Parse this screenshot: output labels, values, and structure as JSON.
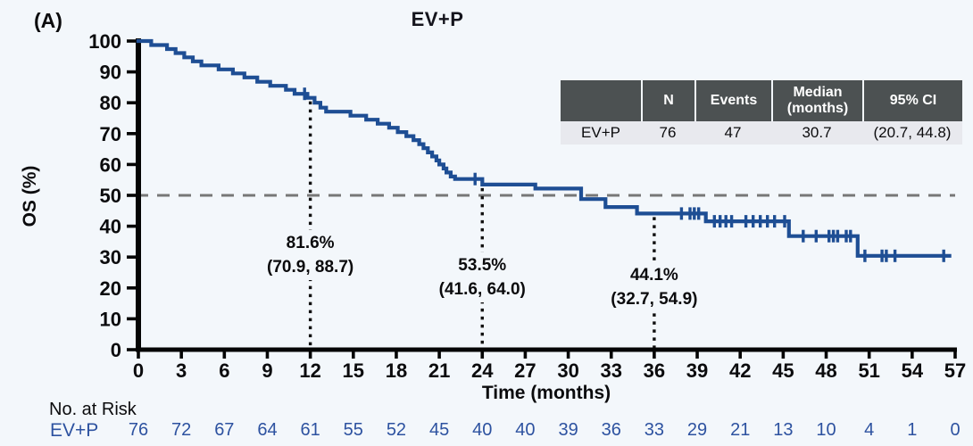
{
  "panel_label": "(A)",
  "title": "EV+P",
  "colors": {
    "background": "#f3f7fb",
    "curve": "#1e4e94",
    "risk_text": "#2d52a0",
    "reference_line": "#777777",
    "dotted_line": "#101010",
    "axis": "#050505",
    "table_header_bg": "#4c5152",
    "table_row_bg": "#e8e9ee"
  },
  "chart_data": {
    "type": "line",
    "subtype": "kaplan-meier-step",
    "title": "EV+P",
    "xlabel": "Time (months)",
    "ylabel": "OS (%)",
    "xlim": [
      0,
      57
    ],
    "ylim": [
      0,
      100
    ],
    "x_ticks": [
      0,
      3,
      6,
      9,
      12,
      15,
      18,
      21,
      24,
      27,
      30,
      33,
      36,
      39,
      42,
      45,
      48,
      51,
      54,
      57
    ],
    "y_ticks": [
      0,
      10,
      20,
      30,
      40,
      50,
      60,
      70,
      80,
      90,
      100
    ],
    "grid": false,
    "reference_line_y": 50,
    "series": [
      {
        "name": "EV+P",
        "n": 76,
        "events": 47,
        "median_months": 30.7,
        "ci_95": "(20.7, 44.8)",
        "step_points": [
          [
            0,
            100
          ],
          [
            0.9,
            98.7
          ],
          [
            2.0,
            97.4
          ],
          [
            2.6,
            96.1
          ],
          [
            3.2,
            94.7
          ],
          [
            3.8,
            93.4
          ],
          [
            4.4,
            92.1
          ],
          [
            5.6,
            90.8
          ],
          [
            6.6,
            89.5
          ],
          [
            7.4,
            88.2
          ],
          [
            8.3,
            86.8
          ],
          [
            9.2,
            85.5
          ],
          [
            10.3,
            84.2
          ],
          [
            10.9,
            82.9
          ],
          [
            11.8,
            81.6
          ],
          [
            12.3,
            80.0
          ],
          [
            12.7,
            78.4
          ],
          [
            13.1,
            77.1
          ],
          [
            14.8,
            75.8
          ],
          [
            15.9,
            74.5
          ],
          [
            16.7,
            73.2
          ],
          [
            17.5,
            71.9
          ],
          [
            18.1,
            70.5
          ],
          [
            18.7,
            69.2
          ],
          [
            19.2,
            67.9
          ],
          [
            19.6,
            66.6
          ],
          [
            19.9,
            65.3
          ],
          [
            20.2,
            63.9
          ],
          [
            20.5,
            62.6
          ],
          [
            20.8,
            61.3
          ],
          [
            21.0,
            60.0
          ],
          [
            21.3,
            58.7
          ],
          [
            21.5,
            57.4
          ],
          [
            21.8,
            56.1
          ],
          [
            22.1,
            55.3
          ],
          [
            24.0,
            53.5
          ],
          [
            27.7,
            52.2
          ],
          [
            30.9,
            48.8
          ],
          [
            32.6,
            46.2
          ],
          [
            34.8,
            44.1
          ],
          [
            39.6,
            41.6
          ],
          [
            45.4,
            36.8
          ],
          [
            50.2,
            30.4
          ]
        ],
        "end_time": 56.6,
        "censor_marks": [
          [
            11.6,
            82.9
          ],
          [
            23.5,
            55.3
          ],
          [
            37.9,
            44.1
          ],
          [
            38.5,
            44.1
          ],
          [
            38.8,
            44.1
          ],
          [
            39.1,
            44.1
          ],
          [
            40.2,
            41.6
          ],
          [
            40.6,
            41.6
          ],
          [
            41.0,
            41.6
          ],
          [
            41.4,
            41.6
          ],
          [
            42.4,
            41.6
          ],
          [
            42.9,
            41.6
          ],
          [
            43.4,
            41.6
          ],
          [
            43.9,
            41.6
          ],
          [
            44.4,
            41.6
          ],
          [
            45.1,
            41.6
          ],
          [
            46.4,
            36.8
          ],
          [
            47.3,
            36.8
          ],
          [
            48.2,
            36.8
          ],
          [
            48.5,
            36.8
          ],
          [
            48.8,
            36.8
          ],
          [
            49.4,
            36.8
          ],
          [
            49.7,
            36.8
          ],
          [
            50.7,
            30.4
          ],
          [
            51.9,
            30.4
          ],
          [
            52.2,
            30.4
          ],
          [
            52.8,
            30.4
          ],
          [
            56.2,
            30.4
          ]
        ]
      }
    ],
    "landmarks": [
      {
        "time": 12,
        "value": 81.6,
        "label_pct": "81.6%",
        "label_ci": "(70.9, 88.7)"
      },
      {
        "time": 24,
        "value": 53.5,
        "label_pct": "53.5%",
        "label_ci": "(41.6, 64.0)"
      },
      {
        "time": 36,
        "value": 44.1,
        "label_pct": "44.1%",
        "label_ci": "(32.7, 54.9)"
      }
    ]
  },
  "stats_table": {
    "headers": [
      "",
      "N",
      "Events",
      "Median (months)",
      "95% CI"
    ],
    "rows": [
      [
        "EV+P",
        "76",
        "47",
        "30.7",
        "(20.7, 44.8)"
      ]
    ]
  },
  "risk_table": {
    "title": "No. at Risk",
    "row_label": "EV+P",
    "values": [
      76,
      72,
      67,
      64,
      61,
      55,
      52,
      45,
      40,
      40,
      39,
      36,
      33,
      29,
      21,
      13,
      10,
      4,
      1,
      0
    ]
  }
}
